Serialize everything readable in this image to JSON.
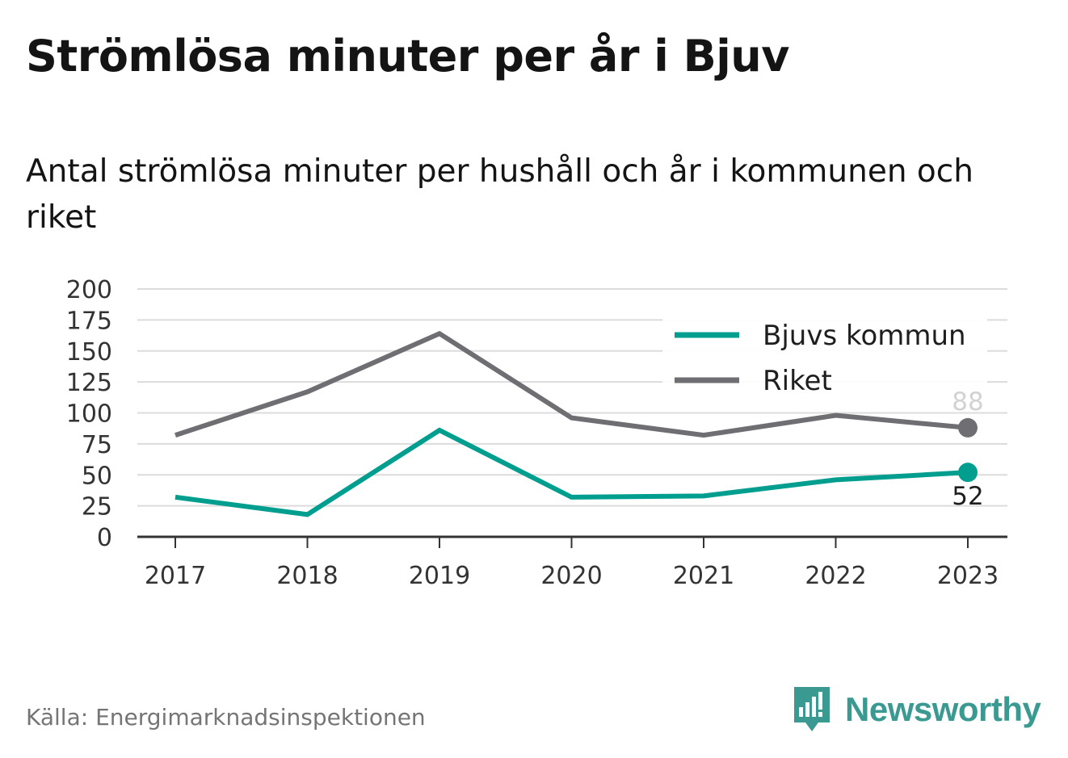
{
  "header": {
    "title": "Strömlösa minuter per år i Bjuv",
    "subtitle": "Antal strömlösa minuter per hushåll och år i kommunen och riket"
  },
  "footer": {
    "source": "Källa: Energimarknadsinspektionen",
    "brand": "Newsworthy",
    "brand_color": "#3a9a91"
  },
  "chart_data": {
    "type": "line",
    "title": "Strömlösa minuter per år i Bjuv",
    "subtitle": "Antal strömlösa minuter per hushåll och år i kommunen och riket",
    "x": [
      "2017",
      "2018",
      "2019",
      "2020",
      "2021",
      "2022",
      "2023"
    ],
    "ylim": [
      0,
      200
    ],
    "yticks": [
      0,
      25,
      50,
      75,
      100,
      125,
      150,
      175,
      200
    ],
    "grid": true,
    "legend_position": "top-right",
    "series": [
      {
        "name": "Bjuvs kommun",
        "color": "#009e8f",
        "values": [
          32,
          18,
          86,
          32,
          33,
          46,
          52
        ],
        "end_label": "52"
      },
      {
        "name": "Riket",
        "color": "#6e6e73",
        "values": [
          82,
          117,
          164,
          96,
          82,
          98,
          88
        ],
        "end_label": "88"
      }
    ]
  }
}
